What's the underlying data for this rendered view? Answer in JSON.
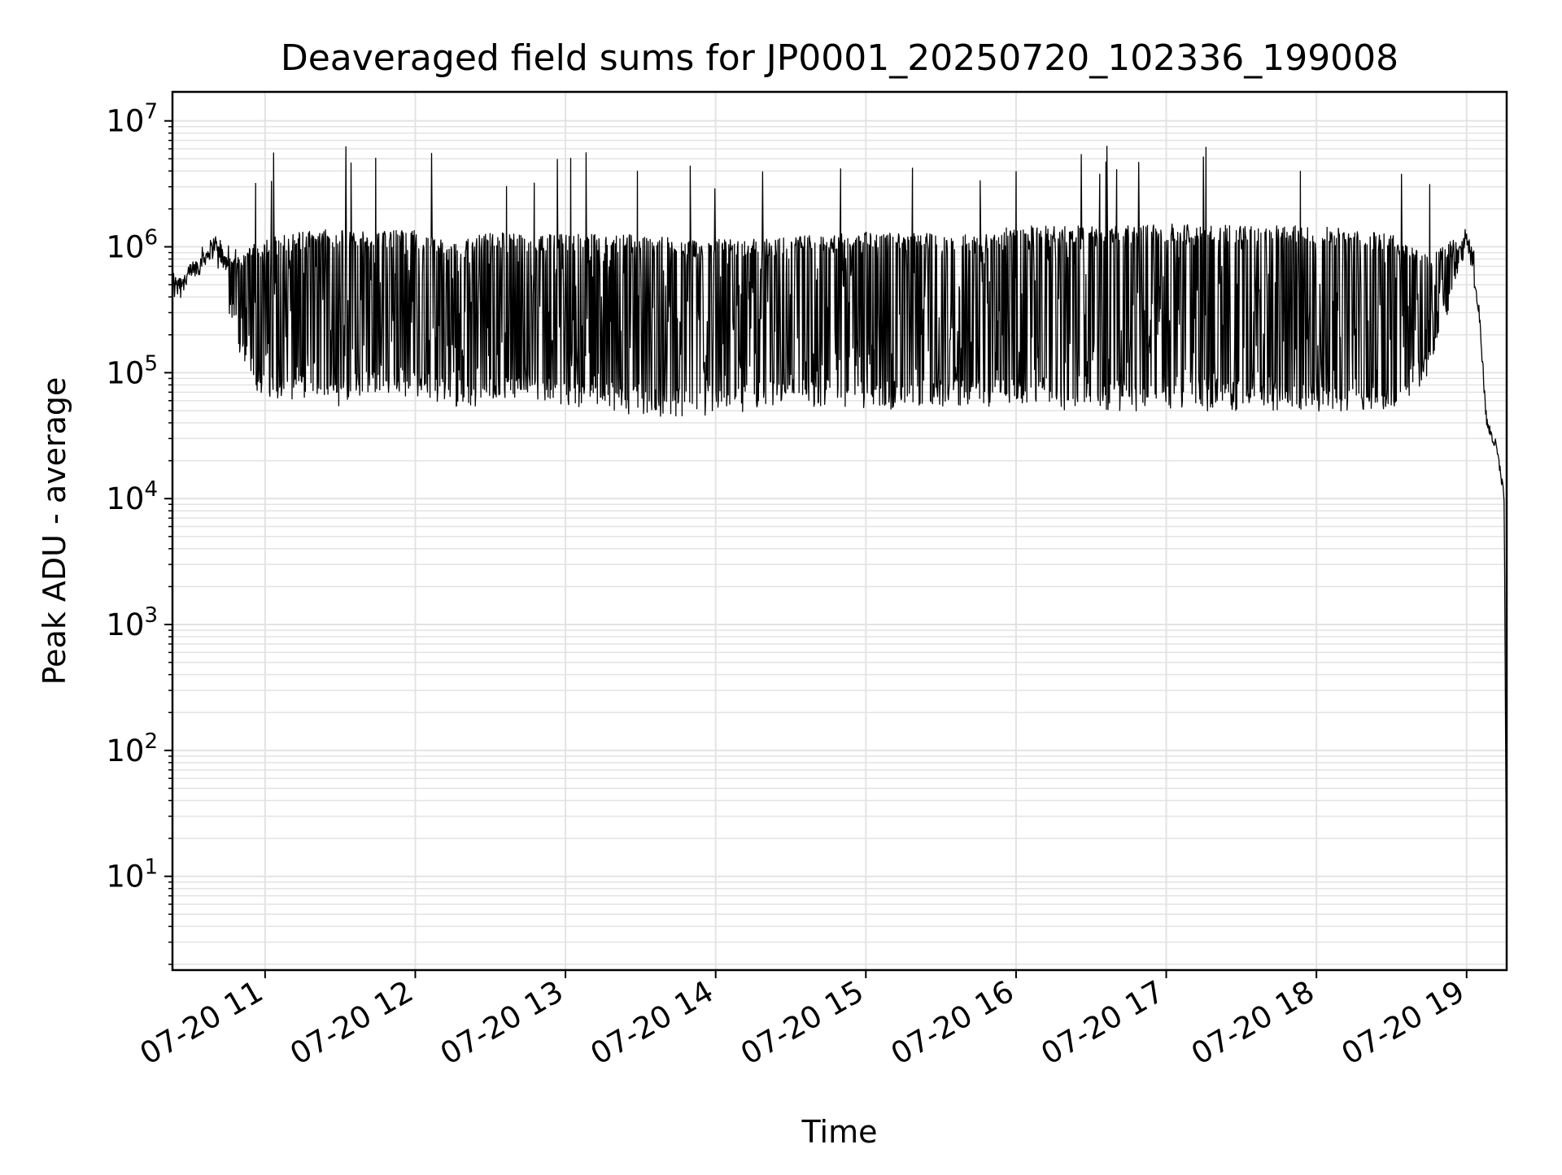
{
  "chart_data": {
    "type": "line",
    "title": "Deaveraged field sums for JP0001_20250720_102336_199008",
    "xlabel": "Time",
    "ylabel": "Peak ADU - average",
    "y_scale": "log",
    "grid": true,
    "line_color": "#000000",
    "grid_color": "#e3e3e3",
    "xlim": [
      "07-20 10:23",
      "07-20 19:16"
    ],
    "ylim": [
      1.8,
      17000000
    ],
    "x_ticks": [
      "07-20 11",
      "07-20 12",
      "07-20 13",
      "07-20 14",
      "07-20 15",
      "07-20 16",
      "07-20 17",
      "07-20 18",
      "07-20 19"
    ],
    "y_ticks": [
      {
        "value": 10,
        "base": "10",
        "exp": "1"
      },
      {
        "value": 100,
        "base": "10",
        "exp": "2"
      },
      {
        "value": 1000,
        "base": "10",
        "exp": "3"
      },
      {
        "value": 10000,
        "base": "10",
        "exp": "4"
      },
      {
        "value": 100000,
        "base": "10",
        "exp": "5"
      },
      {
        "value": 1000000,
        "base": "10",
        "exp": "6"
      },
      {
        "value": 10000000,
        "base": "10",
        "exp": "7"
      }
    ],
    "series": [
      {
        "x": [
          "07-20 10:23",
          "07-20 10:30",
          "07-20 10:40",
          "07-20 10:50",
          "07-20 11:00",
          "07-20 11:15",
          "07-20 11:30",
          "07-20 11:45",
          "07-20 12:00",
          "07-20 12:15",
          "07-20 12:30",
          "07-20 12:45",
          "07-20 13:00",
          "07-20 13:15",
          "07-20 13:30",
          "07-20 13:45",
          "07-20 14:00",
          "07-20 14:15",
          "07-20 14:30",
          "07-20 14:45",
          "07-20 15:00",
          "07-20 15:15",
          "07-20 15:30",
          "07-20 15:45",
          "07-20 16:00",
          "07-20 16:15",
          "07-20 16:30",
          "07-20 16:45",
          "07-20 17:00",
          "07-20 17:15",
          "07-20 17:30",
          "07-20 17:45",
          "07-20 18:00",
          "07-20 18:15",
          "07-20 18:30",
          "07-20 18:45",
          "07-20 19:00",
          "07-20 19:05",
          "07-20 19:08",
          "07-20 19:12",
          "07-20 19:15",
          "07-20 19:16"
        ],
        "y": [
          380000,
          550000,
          1100000,
          300000,
          150000,
          200000,
          400000,
          800000,
          300000,
          100000,
          800000,
          300000,
          150000,
          300000,
          250000,
          100000,
          120000,
          100000,
          80000,
          300000,
          700000,
          800000,
          700000,
          500000,
          800000,
          600000,
          500000,
          400000,
          500000,
          600000,
          500000,
          500000,
          600000,
          400000,
          300000,
          400000,
          1200000,
          300000,
          40000,
          25000,
          10000,
          4
        ],
        "env_upper": [
          600000,
          700000,
          1200000,
          900000,
          1100000,
          1300000,
          1300000,
          1300000,
          1300000,
          1000000,
          1300000,
          1200000,
          1200000,
          1200000,
          1200000,
          1100000,
          1100000,
          1100000,
          1150000,
          1200000,
          1250000,
          1250000,
          1200000,
          1200000,
          1400000,
          1400000,
          1400000,
          1400000,
          1450000,
          1450000,
          1400000,
          1400000,
          1400000,
          1300000,
          1200000,
          800000,
          1300000,
          900000,
          50000,
          28000,
          10000,
          4
        ],
        "env_lower": [
          350000,
          500000,
          900000,
          150000,
          60000,
          70000,
          60000,
          80000,
          70000,
          60000,
          60000,
          70000,
          55000,
          55000,
          50000,
          50000,
          50000,
          55000,
          60000,
          60000,
          50000,
          60000,
          60000,
          60000,
          60000,
          55000,
          55000,
          55000,
          55000,
          55000,
          55000,
          55000,
          55000,
          55000,
          55000,
          100000,
          1100000,
          300000,
          35000,
          22000,
          10000,
          4
        ]
      }
    ]
  }
}
